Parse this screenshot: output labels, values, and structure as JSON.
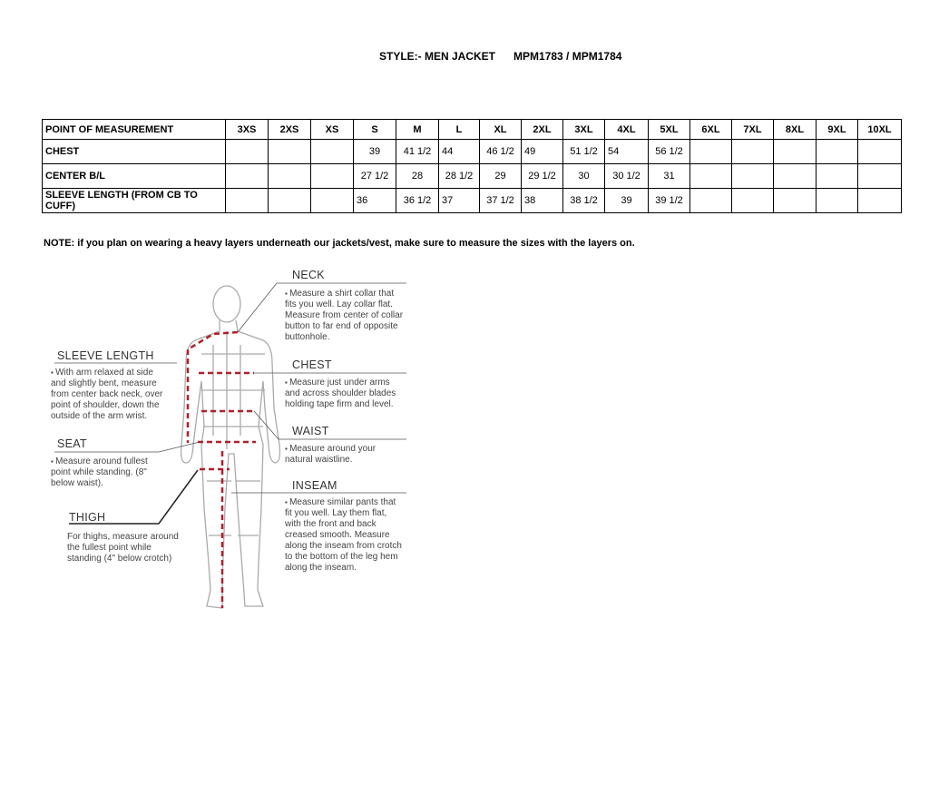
{
  "title": {
    "style": "STYLE:- MEN JACKET",
    "codes": "MPM1783 / MPM1784"
  },
  "table": {
    "headers": [
      "POINT OF MEASUREMENT",
      "3XS",
      "2XS",
      "XS",
      "S",
      "M",
      "L",
      "XL",
      "2XL",
      "3XL",
      "4XL",
      "5XL",
      "6XL",
      "7XL",
      "8XL",
      "9XL",
      "10XL"
    ],
    "rows": [
      {
        "label": "CHEST",
        "values": [
          "",
          "",
          "",
          "39",
          "41 1/2",
          "44",
          "46 1/2",
          "49",
          "51 1/2",
          "54",
          "56 1/2",
          "",
          "",
          "",
          "",
          ""
        ]
      },
      {
        "label": "CENTER B/L",
        "values": [
          "",
          "",
          "",
          "27 1/2",
          "28",
          "28 1/2",
          "29",
          "29 1/2",
          "30",
          "30 1/2",
          "31",
          "",
          "",
          "",
          "",
          ""
        ]
      },
      {
        "label": "SLEEVE LENGTH (FROM CB TO CUFF)",
        "values": [
          "",
          "",
          "",
          "36",
          "36 1/2",
          "37",
          "37 1/2",
          "38",
          "38 1/2",
          "39",
          "39 1/2",
          "",
          "",
          "",
          "",
          ""
        ]
      }
    ]
  },
  "note": "NOTE: if you plan on wearing a heavy layers underneath our jackets/vest, make sure to measure the sizes with the layers on.",
  "guide": {
    "neck": {
      "title": "NECK",
      "text": "Measure a shirt collar that fits you well. Lay collar flat. Measure from center of collar button to far end of opposite buttonhole."
    },
    "sleeve": {
      "title": "SLEEVE LENGTH",
      "text": "With arm relaxed at side and slightly bent, measure from center back neck, over point of shoulder, down the outside of the arm wrist."
    },
    "chest": {
      "title": "CHEST",
      "text": "Measure just under arms and across shoulder blades holding tape firm and level."
    },
    "waist": {
      "title": "WAIST",
      "text": "Measure around your natural waistline."
    },
    "seat": {
      "title": "SEAT",
      "text": "Measure around fullest point while standing. (8\" below waist)."
    },
    "inseam": {
      "title": "INSEAM",
      "text": "Measure similar pants that fit you well. Lay them flat, with the front and back creased smooth. Measure along the inseam from crotch to the bottom of the leg hem along the inseam."
    },
    "thigh": {
      "title": "THIGH",
      "text": "For thighs, measure around the fullest point while standing (4\" below crotch)"
    }
  },
  "colors": {
    "measure_line": "#b0202a",
    "figure": "#aaaaaa"
  }
}
